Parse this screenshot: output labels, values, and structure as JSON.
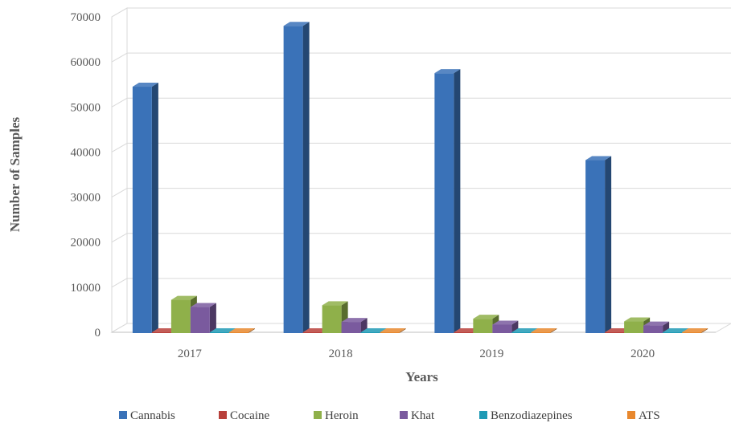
{
  "chart_data": {
    "type": "bar",
    "categories": [
      "2017",
      "2018",
      "2019",
      "2020"
    ],
    "xlabel": "Years",
    "ylabel": "Number of Samples",
    "ylim": [
      0,
      70000
    ],
    "yticks": [
      0,
      10000,
      20000,
      30000,
      40000,
      50000,
      60000,
      70000
    ],
    "grid": true,
    "legend": "bottom",
    "series": [
      {
        "name": "Cannabis",
        "color": "#3a72b8",
        "values": [
          54500,
          68000,
          57500,
          38200
        ]
      },
      {
        "name": "Cocaine",
        "color": "#b8403b",
        "values": [
          0,
          0,
          0,
          0
        ]
      },
      {
        "name": "Heroin",
        "color": "#8fb04a",
        "values": [
          7200,
          6000,
          3000,
          2400
        ]
      },
      {
        "name": "Khat",
        "color": "#7a5a9e",
        "values": [
          5600,
          2300,
          1700,
          1500
        ]
      },
      {
        "name": "Benzodiazepines",
        "color": "#1f9ab5",
        "values": [
          0,
          0,
          0,
          0
        ]
      },
      {
        "name": "ATS",
        "color": "#e8882e",
        "values": [
          0,
          0,
          0,
          0
        ]
      }
    ]
  }
}
